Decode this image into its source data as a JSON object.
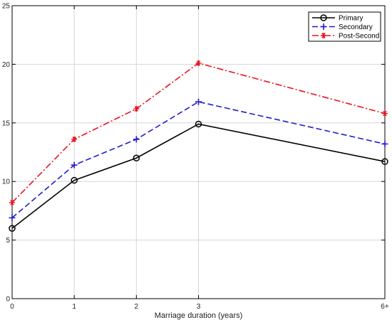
{
  "chart_data": {
    "type": "line",
    "title": "",
    "xlabel": "Marriage duration (years)",
    "ylabel": "",
    "categories": [
      "0",
      "1",
      "2",
      "3",
      "6+"
    ],
    "x": [
      0,
      1,
      2,
      3,
      6
    ],
    "ylim": [
      0,
      25
    ],
    "yticks": [
      0,
      5,
      10,
      15,
      20,
      25
    ],
    "grid": true,
    "legend_position": "top-right",
    "series": [
      {
        "name": "Primary",
        "values": [
          6.0,
          10.1,
          12.0,
          14.9,
          11.7
        ],
        "color": "#000000",
        "line_style": "solid",
        "marker": "circle"
      },
      {
        "name": "Secondary",
        "values": [
          6.9,
          11.4,
          13.6,
          16.8,
          13.2
        ],
        "color": "#1f1fcc",
        "line_style": "dashed",
        "marker": "plus"
      },
      {
        "name": "Post-Second",
        "values": [
          8.2,
          13.6,
          16.2,
          20.1,
          15.8
        ],
        "color": "#e8141e",
        "line_style": "dash-dot",
        "marker": "asterisk"
      }
    ]
  }
}
